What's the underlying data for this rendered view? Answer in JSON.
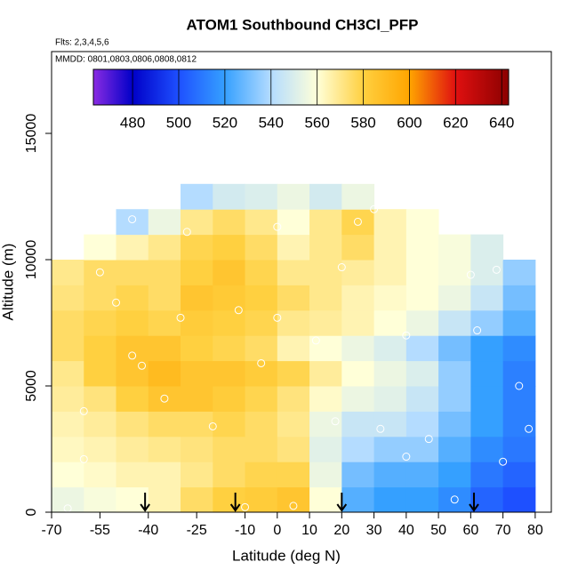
{
  "chart_data": {
    "type": "heatmap",
    "title": "ATOM1 Southbound CH3Cl_PFP",
    "subtitle": "Flts: 2,3,4,5,6",
    "annotation": "MMDD: 0801,0803,0806,0808,0812",
    "xlabel": "Latitude (deg N)",
    "ylabel": "Altitude (m)",
    "xlim": [
      -70,
      85
    ],
    "ylim": [
      0,
      18240
    ],
    "xticks": [
      -70,
      -55,
      -40,
      -25,
      -10,
      0,
      10,
      20,
      30,
      40,
      50,
      60,
      70,
      80
    ],
    "yticks": [
      0,
      5000,
      10000,
      15000
    ],
    "x_edges": [
      -70,
      -60,
      -50,
      -40,
      -30,
      -20,
      -10,
      0,
      10,
      20,
      30,
      40,
      50,
      60,
      70,
      80
    ],
    "y_edges": [
      0,
      1000,
      2000,
      3000,
      4000,
      5000,
      6000,
      7000,
      8000,
      9000,
      10000,
      11000,
      12000,
      13000
    ],
    "values": [
      [
        555,
        558,
        560,
        565,
        575,
        580,
        582,
        585,
        560,
        525,
        520,
        520,
        515,
        505,
        500
      ],
      [
        560,
        562,
        565,
        565,
        570,
        575,
        578,
        578,
        555,
        530,
        525,
        525,
        520,
        510,
        505
      ],
      [
        563,
        565,
        568,
        570,
        572,
        575,
        575,
        572,
        552,
        540,
        535,
        535,
        525,
        515,
        510
      ],
      [
        565,
        568,
        572,
        575,
        575,
        578,
        575,
        570,
        555,
        545,
        545,
        540,
        530,
        520,
        512
      ],
      [
        568,
        572,
        580,
        585,
        585,
        582,
        578,
        572,
        562,
        555,
        552,
        545,
        535,
        520,
        512
      ],
      [
        570,
        580,
        585,
        590,
        585,
        585,
        582,
        578,
        568,
        560,
        555,
        550,
        535,
        520,
        512
      ],
      [
        575,
        580,
        585,
        585,
        580,
        578,
        575,
        565,
        560,
        555,
        550,
        540,
        530,
        520,
        515
      ],
      [
        575,
        578,
        580,
        578,
        582,
        580,
        578,
        570,
        568,
        565,
        560,
        555,
        545,
        535,
        525
      ],
      [
        572,
        575,
        578,
        575,
        585,
        583,
        580,
        575,
        570,
        565,
        562,
        560,
        555,
        545,
        530
      ],
      [
        570,
        575,
        575,
        575,
        580,
        585,
        578,
        570,
        570,
        568,
        565,
        560,
        558,
        550,
        535
      ],
      [
        null,
        560,
        565,
        570,
        578,
        580,
        575,
        565,
        570,
        575,
        565,
        560,
        558,
        550,
        null
      ],
      [
        null,
        null,
        540,
        555,
        570,
        575,
        570,
        560,
        570,
        578,
        565,
        560,
        null,
        null,
        null
      ],
      [
        null,
        null,
        null,
        null,
        540,
        548,
        550,
        555,
        548,
        555,
        null,
        null,
        null,
        null,
        null
      ]
    ],
    "colormap": [
      {
        "value": 463,
        "color": "#8a2be2"
      },
      {
        "value": 480,
        "color": "#0000c8"
      },
      {
        "value": 500,
        "color": "#1e50ff"
      },
      {
        "value": 520,
        "color": "#35a0ff"
      },
      {
        "value": 540,
        "color": "#b4dcff"
      },
      {
        "value": 560,
        "color": "#ffffd8"
      },
      {
        "value": 580,
        "color": "#ffd040"
      },
      {
        "value": 600,
        "color": "#ffa500"
      },
      {
        "value": 620,
        "color": "#e01010"
      },
      {
        "value": 643,
        "color": "#8b0000"
      }
    ],
    "colorbar_ticks": [
      480,
      500,
      520,
      540,
      560,
      580,
      600,
      620,
      640
    ],
    "samples": {
      "x": [
        -65,
        -60,
        -55,
        -50,
        -45,
        -42,
        -35,
        -28,
        -20,
        -12,
        -5,
        0,
        5,
        12,
        18,
        25,
        32,
        40,
        47,
        55,
        62,
        68,
        75,
        78,
        -45,
        -30,
        0,
        20,
        40,
        60,
        -60,
        -10,
        30,
        70
      ],
      "y": [
        150,
        2100,
        9500,
        8300,
        6200,
        5800,
        4500,
        11100,
        3400,
        8000,
        5900,
        7700,
        250,
        6800,
        3600,
        11500,
        3300,
        7000,
        2900,
        500,
        7200,
        9600,
        5000,
        3300,
        11600,
        7700,
        11300,
        9700,
        2200,
        9400,
        4000,
        200,
        12000,
        2000
      ]
    },
    "arrows_x": [
      -41,
      -13,
      20,
      61
    ]
  }
}
